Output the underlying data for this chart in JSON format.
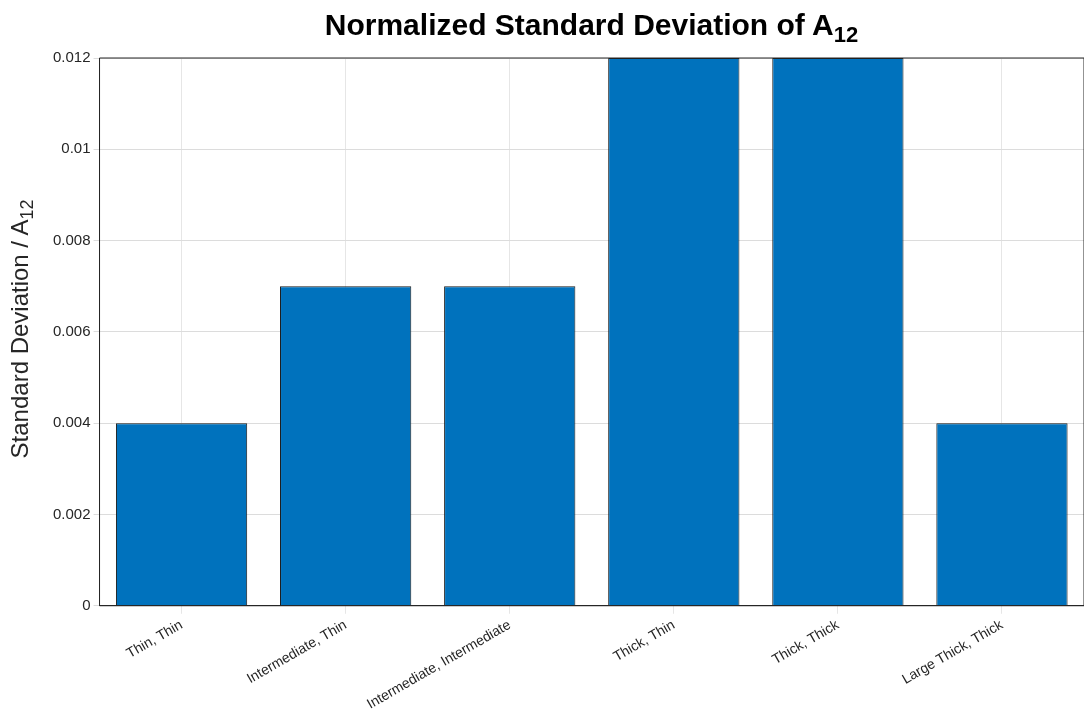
{
  "chart_data": {
    "type": "bar",
    "title": "Normalized Standard Deviation of A$_{12}$",
    "ylabel": "Standard Deviation / A$_{12}$",
    "categories": [
      "Thin, Thin",
      "Intermediate, Thin",
      "Intermediate, Intermediate",
      "Thick, Thin",
      "Thick, Thick",
      "Large Thick, Thick"
    ],
    "values": [
      0.004,
      0.007,
      0.007,
      0.012,
      0.012,
      0.004
    ],
    "color": "#0072bd",
    "ylim": [
      0,
      0.012
    ],
    "yticks": [
      0,
      0.002,
      0.004,
      0.006,
      0.008,
      0.01,
      0.012
    ],
    "grid": true,
    "legend": false
  }
}
